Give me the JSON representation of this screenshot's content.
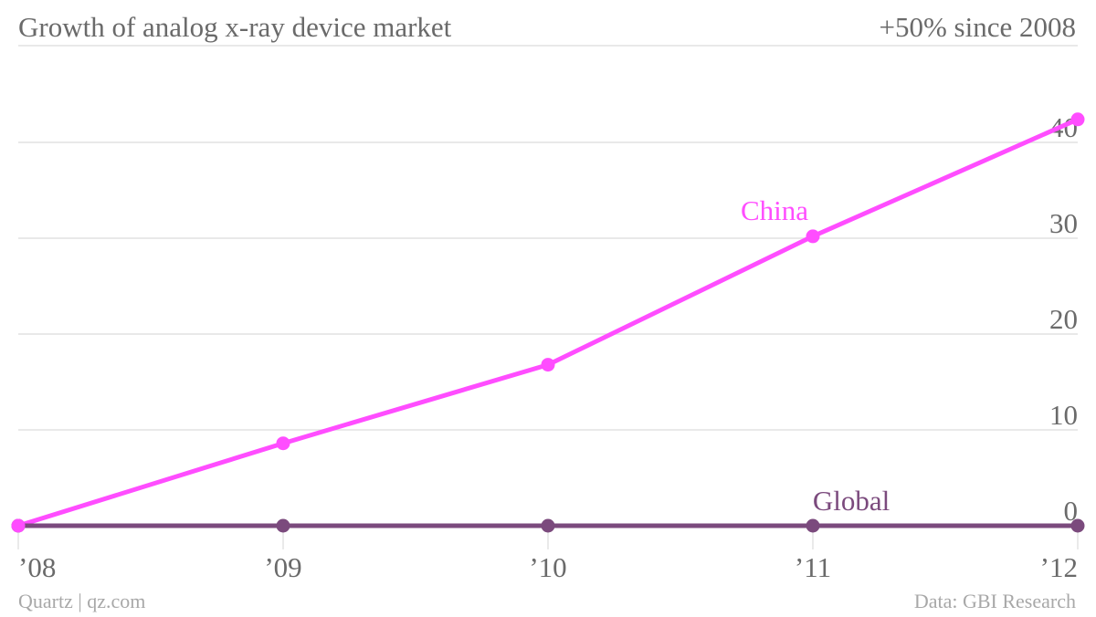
{
  "header": {
    "title": "Growth of analog x-ray device market",
    "subtitle": "+50% since 2008"
  },
  "footer": {
    "credit": "Quartz | qz.com",
    "source": "Data: GBI Research"
  },
  "chart_data": {
    "type": "line",
    "x": [
      "’08",
      "’09",
      "’10",
      "’11",
      "’12"
    ],
    "ylim": [
      0,
      45
    ],
    "yticks": [
      0,
      10,
      20,
      30,
      40
    ],
    "grid": true,
    "series": [
      {
        "name": "China",
        "color": "#ff4dff",
        "values": [
          0,
          8.6,
          16.8,
          30.2,
          42.4
        ]
      },
      {
        "name": "Global",
        "color": "#7b4a7d",
        "values": [
          0,
          0,
          0,
          0,
          0
        ]
      }
    ]
  }
}
